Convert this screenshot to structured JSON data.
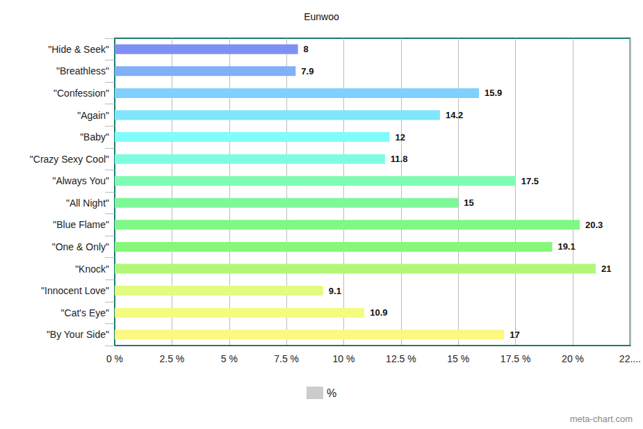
{
  "chart_data": {
    "type": "bar",
    "title": "Eunwoo",
    "orientation": "horizontal",
    "categories": [
      "\"Hide & Seek\"",
      "\"Breathless\"",
      "\"Confession\"",
      "\"Again\"",
      "\"Baby\"",
      "\"Crazy Sexy Cool\"",
      "\"Always You\"",
      "\"All Night\"",
      "\"Blue Flame\"",
      "\"One & Only\"",
      "\"Knock\"",
      "\"Innocent Love\"",
      "\"Cat's Eye\"",
      "\"By Your Side\""
    ],
    "series": [
      {
        "name": "%",
        "color": "#cccccc",
        "values": [
          8,
          7.9,
          15.9,
          14.2,
          12,
          11.8,
          17.5,
          15,
          20.3,
          19.1,
          21,
          9.1,
          10.9,
          17
        ],
        "colors": [
          "#7f8ff4",
          "#7fb0f8",
          "#7fd0fc",
          "#7fe6fc",
          "#7ffcfc",
          "#7ffce0",
          "#7ffcb4",
          "#7ff898",
          "#7ff884",
          "#86f878",
          "#b2f878",
          "#e2fc80",
          "#f4fc80",
          "#fcf880"
        ]
      }
    ],
    "xlim": [
      0,
      22.5
    ],
    "xticks": [
      {
        "value": 0,
        "label": "0 %"
      },
      {
        "value": 2.5,
        "label": "2.5 %"
      },
      {
        "value": 5,
        "label": "5 %"
      },
      {
        "value": 7.5,
        "label": "7.5 %"
      },
      {
        "value": 10,
        "label": "10 %"
      },
      {
        "value": 12.5,
        "label": "12.5 %"
      },
      {
        "value": 15,
        "label": "15 %"
      },
      {
        "value": 17.5,
        "label": "17.5 %"
      },
      {
        "value": 20,
        "label": "20 %"
      },
      {
        "value": 22.5,
        "label": "22...."
      }
    ],
    "grid": true,
    "data_labels": true,
    "legend": "bottom",
    "annotations": [
      "meta-chart.com"
    ]
  }
}
